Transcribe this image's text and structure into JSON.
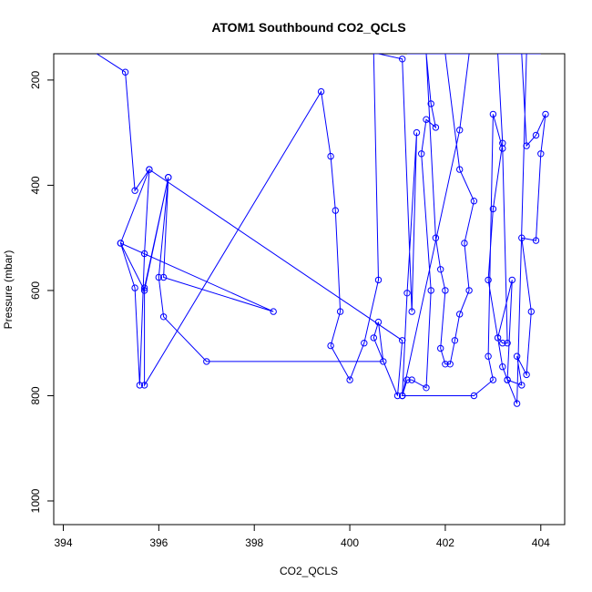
{
  "chart_data": {
    "type": "line",
    "title": "ATOM1 Southbound CO2_QCLS",
    "xlabel": "CO2_QCLS",
    "ylabel": "Pressure (mbar)",
    "xlim": [
      393.8,
      404.5
    ],
    "ylim": [
      1045,
      150
    ],
    "y_reversed": true,
    "grid": false,
    "x_ticks": [
      394,
      396,
      398,
      400,
      402,
      404
    ],
    "y_ticks": [
      200,
      400,
      600,
      800,
      1000
    ],
    "line_color": "#0000ff",
    "marker": "open-circle",
    "series": [
      {
        "x": [
          394.7,
          395.3,
          395.5,
          395.8,
          395.7,
          395.6,
          395.5,
          395.2,
          395.7,
          396.2,
          396.0,
          396.1,
          397.0,
          400.7,
          400.6,
          400.5,
          401.0,
          401.1,
          395.8,
          395.2,
          398.4,
          396.1,
          396.2,
          395.7,
          395.7,
          399.4,
          399.6,
          399.7,
          399.8,
          399.6,
          400.0,
          400.3,
          400.6,
          400.5,
          400.6,
          401.1,
          401.3,
          401.4,
          401.2,
          401.1,
          401.2,
          401.3,
          401.6,
          401.7,
          401.5,
          401.6,
          401.8,
          401.7,
          401.6,
          401.8,
          401.9,
          402.0,
          401.9,
          402.0,
          402.1,
          402.2,
          402.3,
          402.5,
          402.4,
          402.6,
          402.3,
          402.0,
          401.6,
          401.3,
          401.2,
          401.5,
          401.7,
          401.9,
          402.1,
          402.5,
          402.3,
          401.1,
          402.6,
          403.0,
          402.9,
          403.0,
          403.2,
          403.3,
          403.2,
          403.1,
          403.4,
          403.3,
          403.6,
          403.5,
          403.7,
          403.8,
          403.6,
          403.9,
          404.0,
          404.1,
          403.9,
          403.7,
          403.6,
          403.5,
          403.6,
          403.7,
          403.4,
          403.5,
          403.3,
          403.6,
          403.8,
          403.9,
          403.7,
          403.5,
          403.3,
          403.2,
          402.9,
          403.0,
          403.2,
          403.1,
          403.4,
          403.6,
          403.8,
          404.0,
          403.9,
          403.7,
          403.6
        ],
        "y": [
          150,
          185,
          410,
          370,
          530,
          780,
          595,
          510,
          600,
          385,
          575,
          650,
          735,
          735,
          660,
          690,
          800,
          695,
          370,
          510,
          640,
          575,
          385,
          595,
          780,
          222,
          345,
          448,
          640,
          705,
          770,
          700,
          580,
          150,
          150,
          160,
          640,
          300,
          605,
          800,
          770,
          770,
          785,
          600,
          340,
          275,
          290,
          245,
          150,
          500,
          560,
          600,
          710,
          740,
          740,
          695,
          645,
          600,
          510,
          430,
          370,
          150,
          150,
          150,
          150,
          150,
          150,
          150,
          150,
          150,
          295,
          800,
          800,
          770,
          725,
          265,
          330,
          700,
          700,
          690,
          580,
          770,
          780,
          725,
          760,
          640,
          500,
          505,
          340,
          265,
          305,
          325,
          150,
          150,
          150,
          150,
          150,
          150,
          150,
          150,
          150,
          150,
          150,
          815,
          770,
          745,
          580,
          445,
          320,
          150,
          150,
          150,
          150,
          150,
          150,
          150,
          150
        ]
      }
    ]
  }
}
